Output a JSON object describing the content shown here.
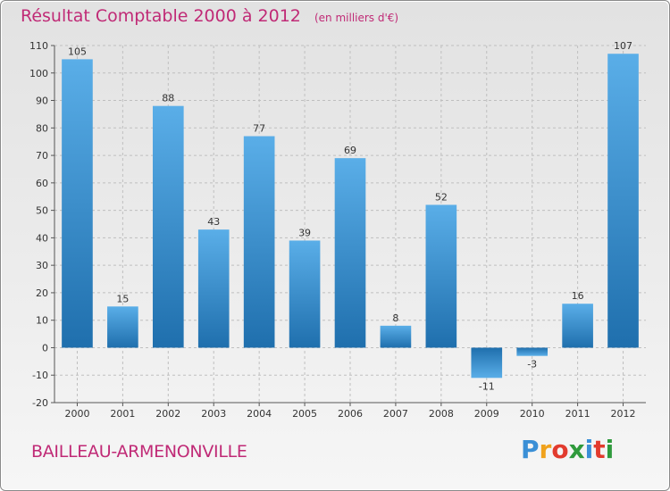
{
  "title": {
    "main": "Résultat Comptable 2000 à 2012",
    "unit": "(en milliers d'€)"
  },
  "commune": "BAILLEAU-ARMENONVILLE",
  "logo": {
    "letters": [
      "P",
      "r",
      "o",
      "x",
      "i",
      "t",
      "i"
    ],
    "colors": [
      "#3a8fd6",
      "#f0a21c",
      "#e23b2e",
      "#2f9a3c",
      "#3a8fd6",
      "#e23b2e",
      "#2f9a3c"
    ]
  },
  "colors": {
    "title": "#c02a76",
    "bar_light": "#5aaee8",
    "bar_dark": "#1f6fad",
    "grid": "#bfbfbf"
  },
  "chart_data": {
    "type": "bar",
    "title": "Résultat Comptable 2000 à 2012",
    "subtitle": "(en milliers d'€)",
    "xlabel": "",
    "ylabel": "",
    "categories": [
      "2000",
      "2001",
      "2002",
      "2003",
      "2004",
      "2005",
      "2006",
      "2007",
      "2008",
      "2009",
      "2010",
      "2011",
      "2012"
    ],
    "values": [
      105,
      15,
      88,
      43,
      77,
      39,
      69,
      8,
      52,
      -11,
      -3,
      16,
      107
    ],
    "ylim": [
      -20,
      110
    ],
    "yticks": [
      -20,
      -10,
      0,
      10,
      20,
      30,
      40,
      50,
      60,
      70,
      80,
      90,
      100,
      110
    ],
    "grid": true,
    "legend": "none"
  }
}
